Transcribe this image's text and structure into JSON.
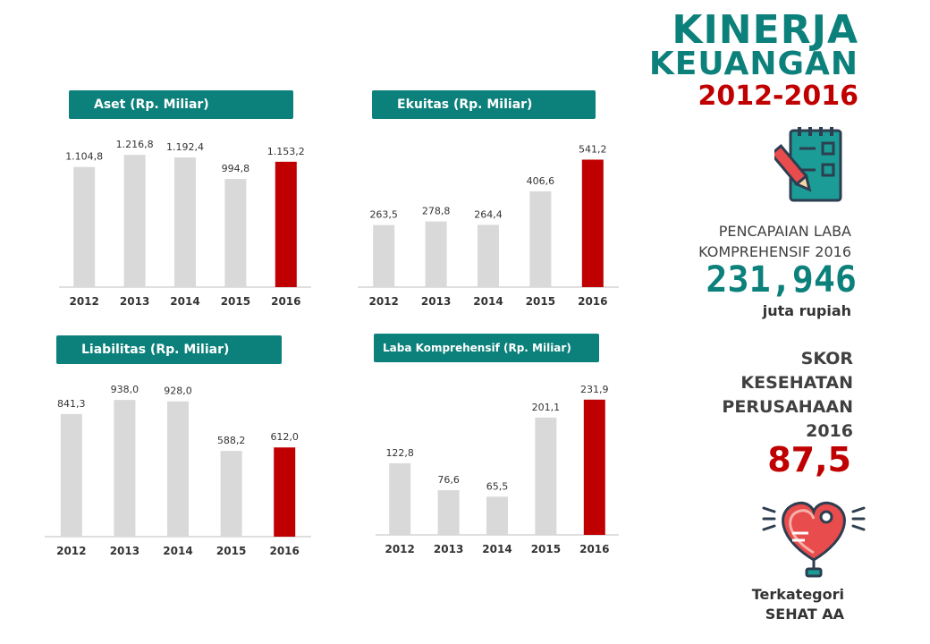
{
  "title": {
    "line1": "KINERJA",
    "line2": "KEUANGAN",
    "years": "2012-2016"
  },
  "profit": {
    "label_line1": "PENCAPAIAN LABA",
    "label_line2": "KOMPREHENSIF  2016",
    "value": "231,946",
    "unit": "juta rupiah"
  },
  "health": {
    "label_line1": "SKOR",
    "label_line2": "KESEHATAN",
    "label_line3": "PERUSAHAAN",
    "label_line4": "2016",
    "score": "87,5",
    "category_line1": "Terkategori",
    "category_line2": "SEHAT AA"
  },
  "colors": {
    "teal": "#0c807a",
    "bar_gray": "#d9d9d9",
    "bar_highlight": "#c00000"
  },
  "icons": [
    "notepad-icon",
    "heart-icon"
  ],
  "chart_data": [
    {
      "type": "bar",
      "title": "Aset (Rp. Miliar)",
      "categories": [
        "2012",
        "2013",
        "2014",
        "2015",
        "2016"
      ],
      "values": [
        1104.8,
        1216.8,
        1192.4,
        994.8,
        1153.2
      ],
      "value_labels": [
        "1.104,8",
        "1.216,8",
        "1.192,4",
        "994,8",
        "1.153,2"
      ],
      "highlight_index": 4,
      "ylim": [
        0,
        1300
      ]
    },
    {
      "type": "bar",
      "title": "Ekuitas (Rp. Miliar)",
      "categories": [
        "2012",
        "2013",
        "2014",
        "2015",
        "2016"
      ],
      "values": [
        263.5,
        278.8,
        264.4,
        406.6,
        541.2
      ],
      "value_labels": [
        "263,5",
        "278,8",
        "264,4",
        "406,6",
        "541,2"
      ],
      "highlight_index": 4,
      "ylim": [
        0,
        600
      ]
    },
    {
      "type": "bar",
      "title": "Liabilitas  (Rp. Miliar)",
      "categories": [
        "2012",
        "2013",
        "2014",
        "2015",
        "2016"
      ],
      "values": [
        841.3,
        938.0,
        928.0,
        588.2,
        612.0
      ],
      "value_labels": [
        "841,3",
        "938,0",
        "928,0",
        "588,2",
        "612,0"
      ],
      "highlight_index": 4,
      "ylim": [
        0,
        1000
      ]
    },
    {
      "type": "bar",
      "title": "Laba Komprehensif  (Rp. Miliar)",
      "categories": [
        "2012",
        "2013",
        "2014",
        "2015",
        "2016"
      ],
      "values": [
        122.8,
        76.6,
        65.5,
        201.1,
        231.9
      ],
      "value_labels": [
        "122,8",
        "76,6",
        "65,5",
        "201,1",
        "231,9"
      ],
      "highlight_index": 4,
      "ylim": [
        0,
        250
      ]
    }
  ]
}
